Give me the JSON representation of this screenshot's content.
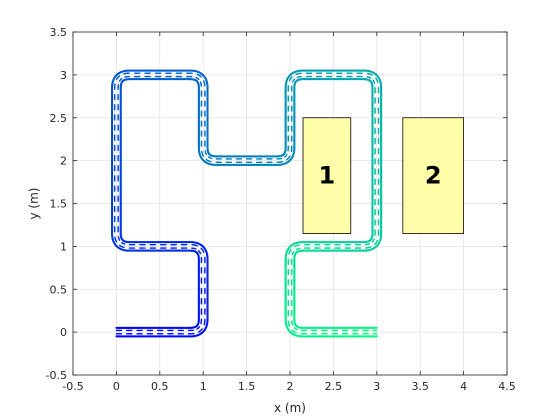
{
  "chart_data": {
    "type": "line",
    "title": "",
    "xlabel": "x (m)",
    "ylabel": "y (m)",
    "xlim": [
      -0.5,
      4.5
    ],
    "ylim": [
      -0.5,
      3.5
    ],
    "xticks": [
      "-0.5",
      "0",
      "0.5",
      "1",
      "1.5",
      "2",
      "2.5",
      "3",
      "3.5",
      "4",
      "4.5"
    ],
    "yticks": [
      "-0.5",
      "0",
      "0.5",
      "1",
      "1.5",
      "2",
      "2.5",
      "3",
      "3.5"
    ],
    "grid": true,
    "path": {
      "waypoints": [
        [
          0,
          0
        ],
        [
          1,
          0
        ],
        [
          1,
          1
        ],
        [
          0,
          1
        ],
        [
          0,
          3
        ],
        [
          1,
          3
        ],
        [
          1,
          2
        ],
        [
          2,
          2
        ],
        [
          2,
          3
        ],
        [
          3,
          3
        ],
        [
          3,
          1
        ],
        [
          2,
          1
        ],
        [
          2,
          0
        ],
        [
          3,
          0
        ]
      ],
      "corner_radius": 0.15,
      "colormap": "winter",
      "track_half_width_outer": 0.05,
      "track_half_width_inner": 0.02
    },
    "obstacles": [
      {
        "label": "1",
        "x": [
          2.15,
          2.7
        ],
        "y": [
          1.15,
          2.5
        ],
        "color": "#ffffaa"
      },
      {
        "label": "2",
        "x": [
          3.3,
          4.0
        ],
        "y": [
          1.15,
          2.5
        ],
        "color": "#ffffaa"
      }
    ]
  }
}
